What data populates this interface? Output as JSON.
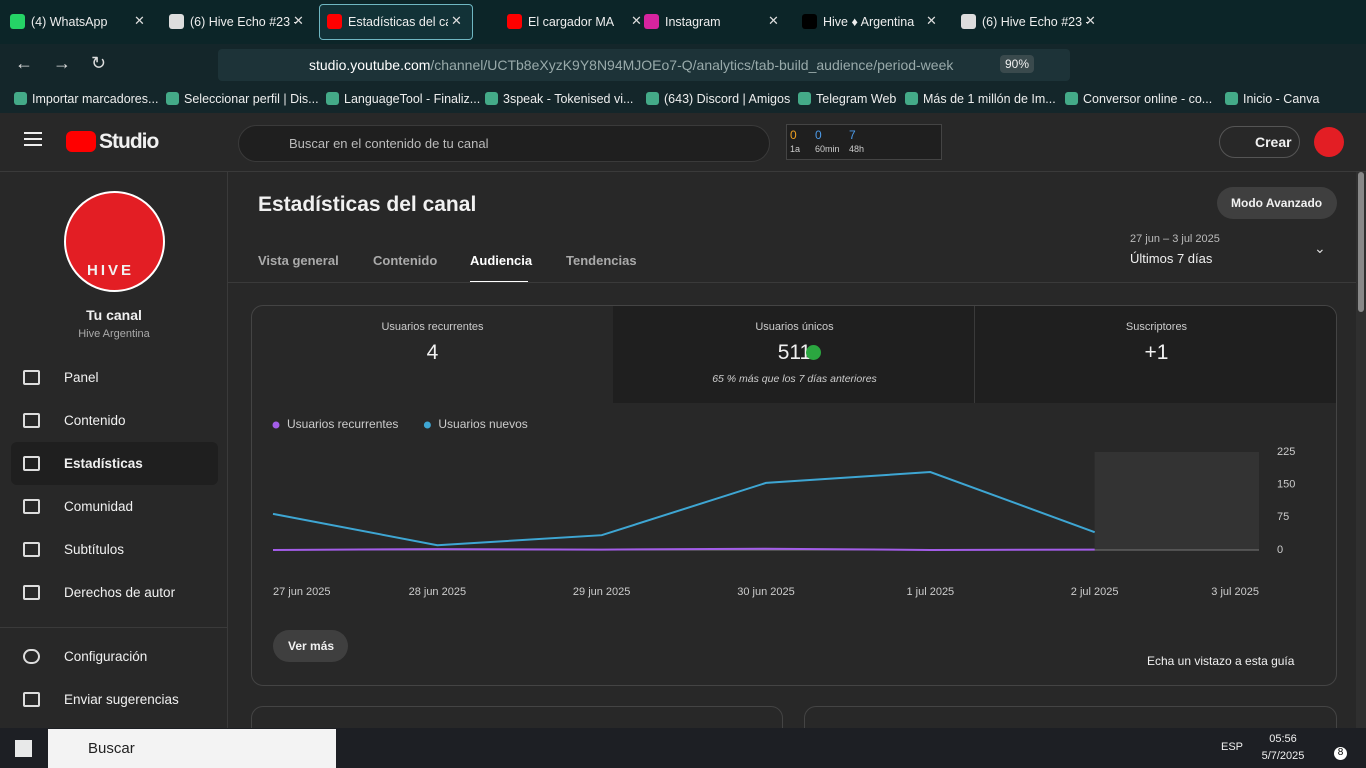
{
  "browser": {
    "tabs": [
      "(4) WhatsApp",
      "(6) Hive Echo #23 -",
      "Estadísticas del can",
      "El cargador MA",
      "Instagram",
      "Hive ♦ Argentina",
      "(6) Hive Echo #23 -"
    ],
    "url_host": "studio.youtube.com",
    "url_path": "/channel/UCTb8eXyzK9Y8N94MJOEo7-Q/analytics/tab-build_audience/period-week",
    "zoom": "90%",
    "bookmarks": [
      "Importar marcadores...",
      "Seleccionar perfil | Dis...",
      "LanguageTool - Finaliz...",
      "3speak - Tokenised vi...",
      "(643) Discord | Amigos",
      "Telegram Web",
      "Más de 1 millón de Im...",
      "Conversor online - co...",
      "Inicio - Canva"
    ]
  },
  "header": {
    "logo": "Studio",
    "search_placeholder": "Buscar en el contenido de tu canal",
    "counters": [
      {
        "count": "0",
        "label": "1a"
      },
      {
        "count": "0",
        "label": "60min"
      },
      {
        "count": "7",
        "label": "48h"
      }
    ],
    "create": "Crear"
  },
  "sidebar": {
    "avatar_text": "HIVE",
    "channel_title": "Tu canal",
    "channel_name": "Hive Argentina",
    "items": [
      "Panel",
      "Contenido",
      "Estadísticas",
      "Comunidad",
      "Subtítulos",
      "Derechos de autor"
    ],
    "bottom_items": [
      "Configuración",
      "Enviar sugerencias"
    ]
  },
  "main": {
    "title": "Estadísticas del canal",
    "advanced": "Modo Avanzado",
    "tabs": [
      "Vista general",
      "Contenido",
      "Audiencia",
      "Tendencias"
    ],
    "date_range": "27 jun – 3 jul 2025",
    "period": "Últimos 7 días",
    "cards": [
      {
        "label": "Usuarios recurrentes",
        "value": "4"
      },
      {
        "label": "Usuarios únicos",
        "value": "511",
        "note": "65 % más que los 7 días anteriores"
      },
      {
        "label": "Suscriptores",
        "value": "+1"
      }
    ],
    "see_more": "Ver más",
    "guide": "Echa un vistazo a esta guía"
  },
  "chart_data": {
    "type": "line",
    "categories": [
      "27 jun 2025",
      "28 jun 2025",
      "29 jun 2025",
      "30 jun 2025",
      "1 jul 2025",
      "2 jul 2025",
      "3 jul 2025"
    ],
    "series": [
      {
        "name": "Usuarios recurrentes",
        "color": "#a35de8",
        "values": [
          0,
          2,
          1,
          3,
          0,
          1,
          null
        ]
      },
      {
        "name": "Usuarios nuevos",
        "color": "#3ea6d3",
        "values": [
          83,
          11,
          34,
          154,
          179,
          41,
          null
        ]
      }
    ],
    "ylim": [
      0,
      225
    ],
    "yticks": [
      0,
      75,
      150,
      225
    ],
    "grid": false
  },
  "taskbar": {
    "search": "Buscar",
    "lang": "ESP",
    "time": "05:56",
    "date": "5/7/2025",
    "notifications": "8"
  }
}
